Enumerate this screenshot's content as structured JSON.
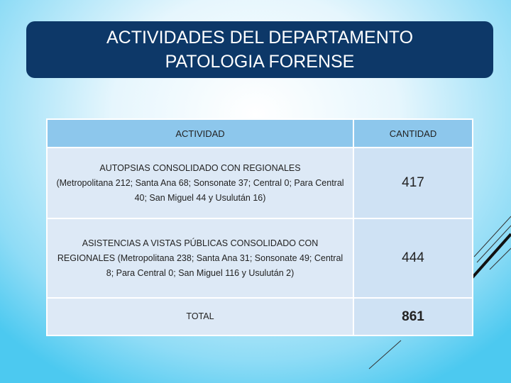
{
  "title": [
    "ACTIVIDADES DEL DEPARTAMENTO",
    "PATOLOGIA FORENSE"
  ],
  "table": {
    "header": [
      "ACTIVIDAD",
      "CANTIDAD"
    ],
    "rows": [
      {
        "activity": "AUTOPSIAS CONSOLIDADO CON REGIONALES",
        "detail": "(Metropolitana 212; Santa Ana 68; Sonsonate 37; Central 0; Para Central 40; San Miguel 44 y Usulután 16)",
        "amount": 417
      },
      {
        "activity": "ASISTENCIAS A VISTAS PÚBLICAS CONSOLIDADO CON REGIONALES",
        "detail": "(Metropolitana 238; Santa Ana 31; Sonsonate 49; Central 8; Para Central 0; San Miguel 116 y Usulután 2)",
        "amount": 444
      },
      {
        "activity": "TOTAL",
        "amount": 861
      }
    ]
  }
}
